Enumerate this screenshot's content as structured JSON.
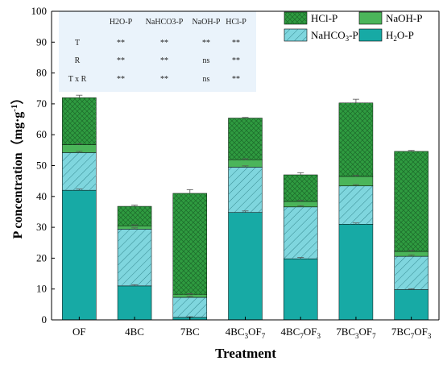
{
  "chart_data": {
    "type": "bar",
    "stacked": true,
    "xlabel": "Treatment",
    "ylabel_main": "P concentration（mg·g",
    "ylabel_sup": "-1",
    "ylabel_close": "）",
    "ylim": [
      0,
      100
    ],
    "yticks": [
      "0",
      "10",
      "20",
      "30",
      "40",
      "50",
      "60",
      "70",
      "80",
      "90",
      "100"
    ],
    "categories": [
      {
        "base": "OF"
      },
      {
        "base": "4BC"
      },
      {
        "base": "7BC"
      },
      {
        "base": "4BC",
        "s1": "3",
        "mid": "OF",
        "s2": "7"
      },
      {
        "base": "4BC",
        "s1": "7",
        "mid": "OF",
        "s2": "3"
      },
      {
        "base": "7BC",
        "s1": "3",
        "mid": "OF",
        "s2": "7"
      },
      {
        "base": "7BC",
        "s1": "7",
        "mid": "OF",
        "s2": "3"
      }
    ],
    "series": [
      {
        "name": "H2O-P",
        "label_main": "H",
        "label_sub": "2",
        "label_rest": "O-P",
        "color": "#17aaa5",
        "pattern": "none",
        "values": [
          42.0,
          11.0,
          0.8,
          34.8,
          19.8,
          31.0,
          9.8
        ],
        "err": [
          0.4,
          0.4,
          0.2,
          0.5,
          0.4,
          0.4,
          0.3
        ]
      },
      {
        "name": "NaHCO3-P",
        "label_main": "NaHCO",
        "label_sub": "3",
        "label_rest": "-P",
        "color": "#7fd6de",
        "pattern": "diag",
        "values": [
          12.2,
          18.4,
          6.5,
          14.7,
          16.8,
          12.4,
          10.8
        ],
        "err": [
          0.4,
          0.4,
          0.4,
          0.4,
          0.4,
          0.4,
          0.4
        ]
      },
      {
        "name": "NaOH-P",
        "label_main": "NaOH-P",
        "label_sub": "",
        "label_rest": "",
        "color": "#4bb55a",
        "pattern": "none",
        "values": [
          2.6,
          1.1,
          1.0,
          2.4,
          1.8,
          3.1,
          1.6
        ],
        "err": [
          0.3,
          0.3,
          0.2,
          0.3,
          0.3,
          0.3,
          0.3
        ]
      },
      {
        "name": "HCl-P",
        "label_main": "HCl-P",
        "label_sub": "",
        "label_rest": "",
        "color": "#2f9b40",
        "pattern": "cross",
        "values": [
          15.2,
          6.3,
          32.7,
          13.5,
          8.6,
          23.8,
          32.4
        ],
        "err": [
          0.8,
          0.4,
          1.2,
          0.2,
          0.7,
          1.2,
          0.3
        ]
      }
    ],
    "legend_order": [
      3,
      2,
      1,
      0
    ],
    "legend_position": "top-right",
    "inset_table": {
      "headers": [
        "",
        "H2O-P",
        "NaHCO3-P",
        "NaOH-P",
        "HCl-P"
      ],
      "rows": [
        [
          "T",
          "**",
          "**",
          "**",
          "**"
        ],
        [
          "R",
          "**",
          "**",
          "ns",
          "**"
        ],
        [
          "T x R",
          "**",
          "**",
          "ns",
          "**"
        ]
      ],
      "background": "#eaf3fb"
    }
  }
}
